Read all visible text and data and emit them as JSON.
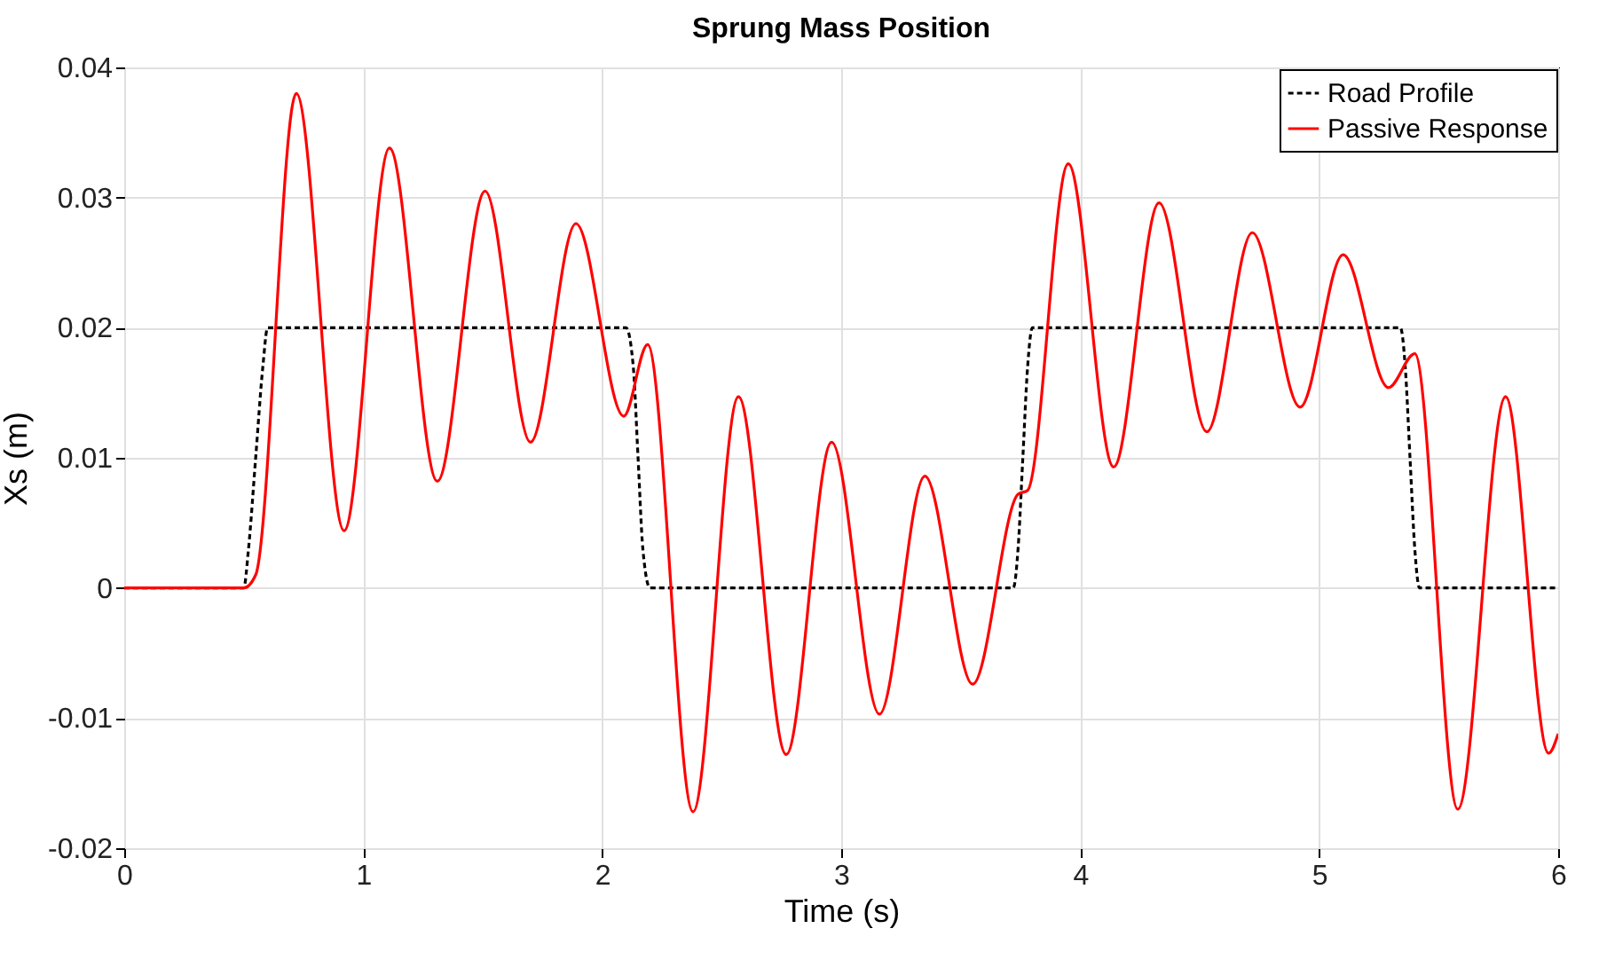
{
  "chart_data": {
    "type": "line",
    "title": "Sprung Mass Position",
    "xlabel": "Time (s)",
    "ylabel": "Xs (m)",
    "xlim": [
      0,
      6
    ],
    "xticks": [
      0,
      1,
      2,
      3,
      4,
      5,
      6
    ],
    "ylim": [
      -0.02,
      0.04
    ],
    "yticks": [
      -0.02,
      -0.01,
      0,
      0.01,
      0.02,
      0.03,
      0.04
    ],
    "grid": true,
    "legend": "top right",
    "marker": "none",
    "series": [
      {
        "name": "Road Profile",
        "color": "#000000",
        "line_style": "dashed",
        "x": [
          0,
          0.5,
          0.52,
          0.55,
          0.58,
          0.6,
          2.1,
          2.13,
          2.15,
          2.17,
          2.2,
          3.72,
          3.74,
          3.76,
          3.78,
          3.8,
          5.34,
          5.36,
          5.38,
          5.4,
          5.42,
          6
        ],
        "values": [
          0,
          0,
          0.003,
          0.01,
          0.017,
          0.02,
          0.02,
          0.017,
          0.01,
          0.003,
          0,
          0,
          0.003,
          0.01,
          0.017,
          0.02,
          0.02,
          0.017,
          0.01,
          0.003,
          0,
          0
        ]
      },
      {
        "name": "Passive Response",
        "color": "#ff0000",
        "line_style": "solid",
        "x": [
          0,
          0.5,
          0.55,
          0.72,
          0.92,
          1.11,
          1.31,
          1.51,
          1.7,
          1.89,
          2.09,
          2.19,
          2.38,
          2.57,
          2.77,
          2.96,
          3.16,
          3.35,
          3.55,
          3.74,
          3.78,
          3.95,
          4.14,
          4.33,
          4.53,
          4.72,
          4.92,
          5.1,
          5.29,
          5.4,
          5.58,
          5.78,
          5.96,
          6
        ],
        "values": [
          0,
          0,
          0.001,
          0.038,
          0.0044,
          0.0338,
          0.0082,
          0.0305,
          0.0112,
          0.028,
          0.0132,
          0.0187,
          -0.0172,
          0.0147,
          -0.0128,
          0.0112,
          -0.0097,
          0.0086,
          -0.0074,
          0.0072,
          0.0075,
          0.0326,
          0.0093,
          0.0296,
          0.012,
          0.0273,
          0.0139,
          0.0256,
          0.0154,
          0.018,
          -0.017,
          0.0147,
          -0.0127,
          -0.0112
        ]
      }
    ]
  }
}
